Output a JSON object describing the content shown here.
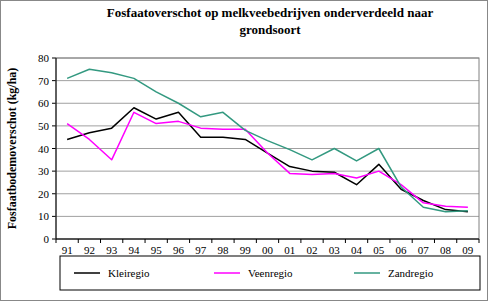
{
  "chart_data": {
    "type": "line",
    "title": "Fosfaatoverschot op melkveebedrijven onderverdeeld naar grondsoort",
    "y_label": "Fosfaatbodemoverschot (kg/ha)",
    "categories": [
      "91",
      "92",
      "93",
      "94",
      "95",
      "96",
      "97",
      "98",
      "99",
      "00",
      "01",
      "02",
      "03",
      "04",
      "05",
      "06",
      "07",
      "08",
      "09"
    ],
    "series": [
      {
        "name": "Kleiregio",
        "color": "#000000",
        "values": [
          44,
          47,
          49,
          58,
          53,
          56,
          45,
          45,
          44,
          38,
          32,
          30,
          29.5,
          24,
          33,
          22,
          17,
          13,
          12
        ]
      },
      {
        "name": "Veenregio",
        "color": "#ff00ff",
        "values": [
          51,
          44,
          35,
          56,
          51,
          52,
          49,
          48.5,
          48.5,
          38,
          29,
          28.5,
          29,
          27,
          30,
          24,
          16,
          14.5,
          14
        ]
      },
      {
        "name": "Zandregio",
        "color": "#339980",
        "values": [
          71,
          75,
          73.5,
          71,
          65,
          60,
          54,
          56,
          48,
          43.5,
          39.5,
          35,
          40,
          34.5,
          40,
          23,
          14,
          12,
          12.5
        ]
      }
    ],
    "ylim": [
      0,
      80
    ],
    "yticks": [
      0,
      10,
      20,
      30,
      40,
      50,
      60,
      70,
      80
    ],
    "grid": true,
    "legend": "bottom"
  }
}
